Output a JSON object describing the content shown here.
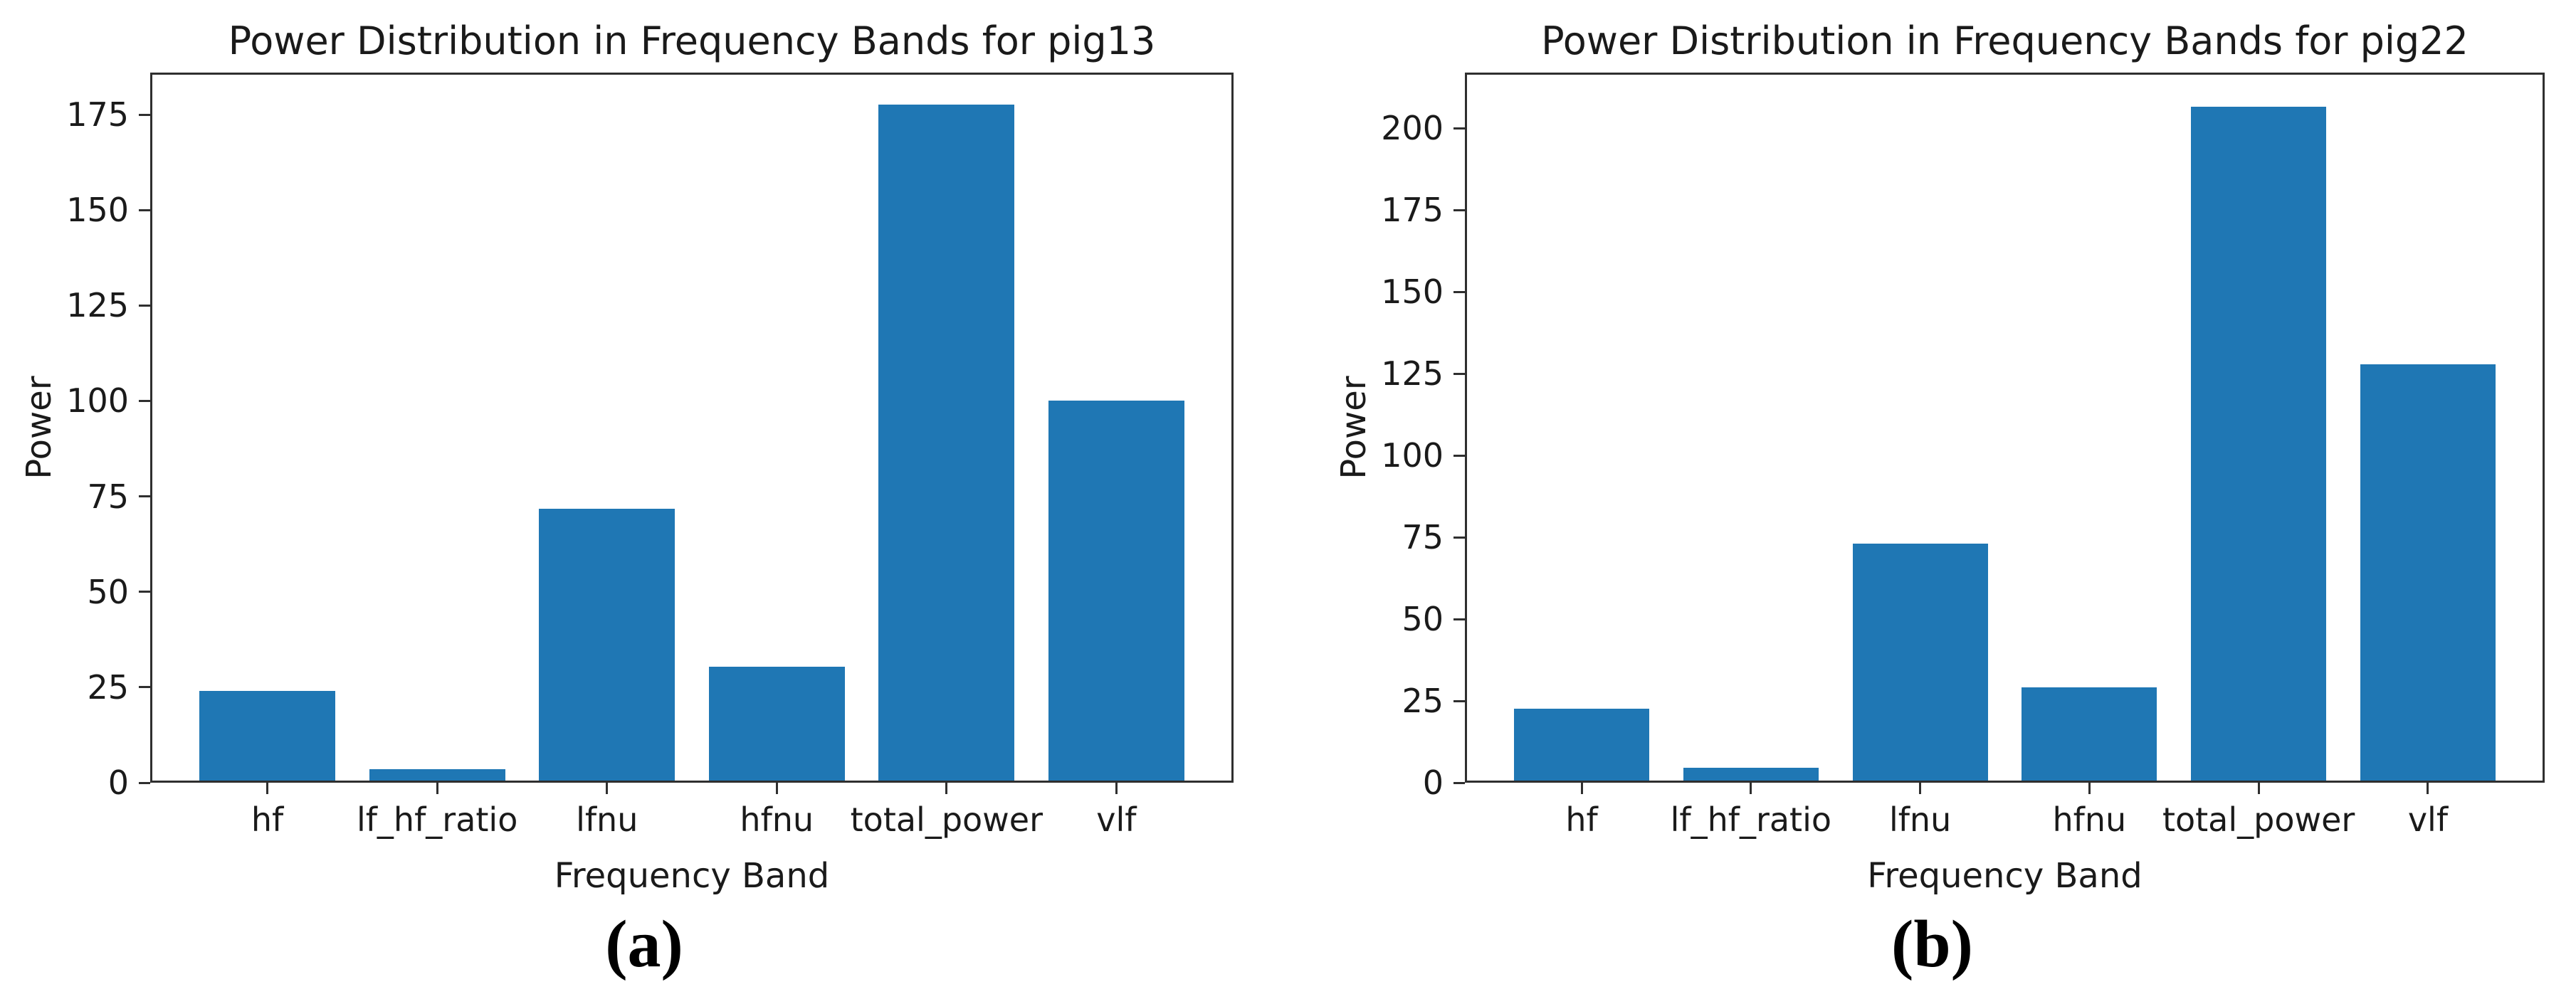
{
  "colors": {
    "bar": "#1f77b4",
    "axis": "#2f2f2f",
    "text": "#1a1a1a"
  },
  "chart_data": [
    {
      "type": "bar",
      "title": "Power Distribution in Frequency Bands for pig13",
      "xlabel": "Frequency Band",
      "ylabel": "Power",
      "caption": "(a)",
      "categories": [
        "hf",
        "lf_hf_ratio",
        "lfnu",
        "hfnu",
        "total_power",
        "vlf"
      ],
      "values": [
        23.4,
        3.0,
        71.2,
        29.8,
        177.0,
        99.6
      ],
      "yticks": [
        0,
        25,
        50,
        75,
        100,
        125,
        150,
        175
      ],
      "ylim": [
        0,
        186
      ],
      "grid": false,
      "legend": null
    },
    {
      "type": "bar",
      "title": "Power Distribution in Frequency Bands for pig22",
      "xlabel": "Frequency Band",
      "ylabel": "Power",
      "caption": "(b)",
      "categories": [
        "hf",
        "lf_hf_ratio",
        "lfnu",
        "hfnu",
        "total_power",
        "vlf"
      ],
      "values": [
        22.0,
        3.9,
        72.4,
        28.4,
        206.0,
        127.3
      ],
      "yticks": [
        0,
        25,
        50,
        75,
        100,
        125,
        150,
        175,
        200
      ],
      "ylim": [
        0,
        217
      ],
      "grid": false,
      "legend": null
    }
  ]
}
